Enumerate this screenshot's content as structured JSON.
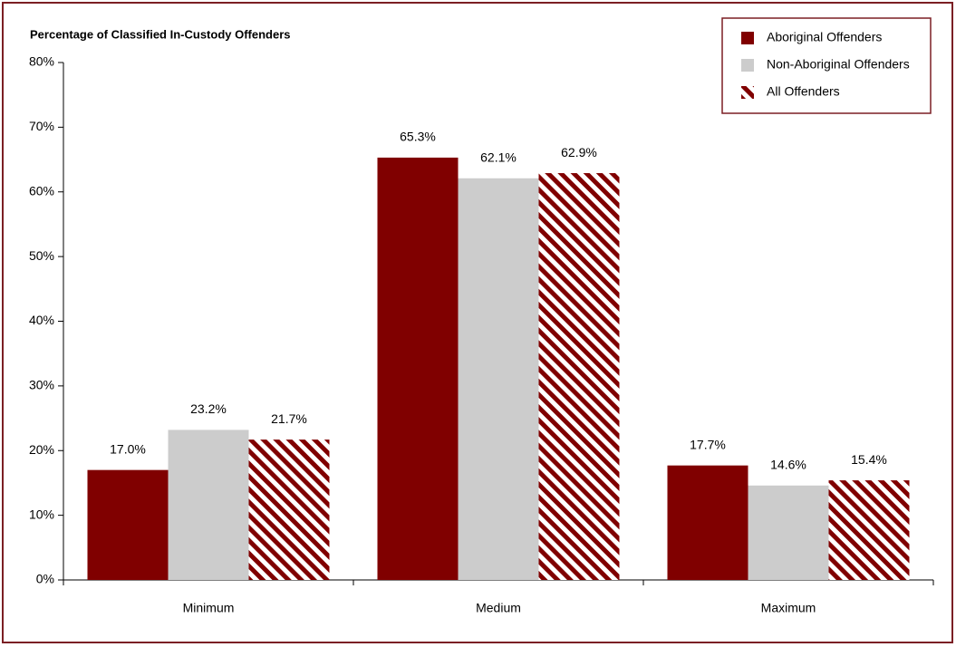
{
  "chart_data": {
    "type": "bar",
    "ylabel": "Percentage of Classified In-Custody Offenders",
    "categories": [
      "Minimum",
      "Medium",
      "Maximum"
    ],
    "series": [
      {
        "name": "Aboriginal Offenders",
        "color": "#800000",
        "values": [
          17.0,
          65.3,
          17.7
        ],
        "value_labels": [
          "17.0%",
          "65.3%",
          "17.7%"
        ]
      },
      {
        "name": "Non-Aboriginal Offenders",
        "color": "#cccccc",
        "values": [
          23.2,
          62.1,
          14.6
        ],
        "value_labels": [
          "23.2%",
          "62.1%",
          "14.6%"
        ]
      },
      {
        "name": "All Offenders",
        "color": "#800000",
        "pattern": "hatch",
        "values": [
          21.7,
          62.9,
          15.4
        ],
        "value_labels": [
          "21.7%",
          "62.9%",
          "15.4%"
        ]
      }
    ],
    "ylim": [
      0,
      80
    ],
    "yticks": [
      {
        "value": 0,
        "label": "0%"
      },
      {
        "value": 10,
        "label": "10%"
      },
      {
        "value": 20,
        "label": "20%"
      },
      {
        "value": 30,
        "label": "30%"
      },
      {
        "value": 40,
        "label": "40%"
      },
      {
        "value": 50,
        "label": "50%"
      },
      {
        "value": 60,
        "label": "60%"
      },
      {
        "value": 70,
        "label": "70%"
      },
      {
        "value": 80,
        "label": "80%"
      }
    ],
    "legend": "top-right"
  }
}
